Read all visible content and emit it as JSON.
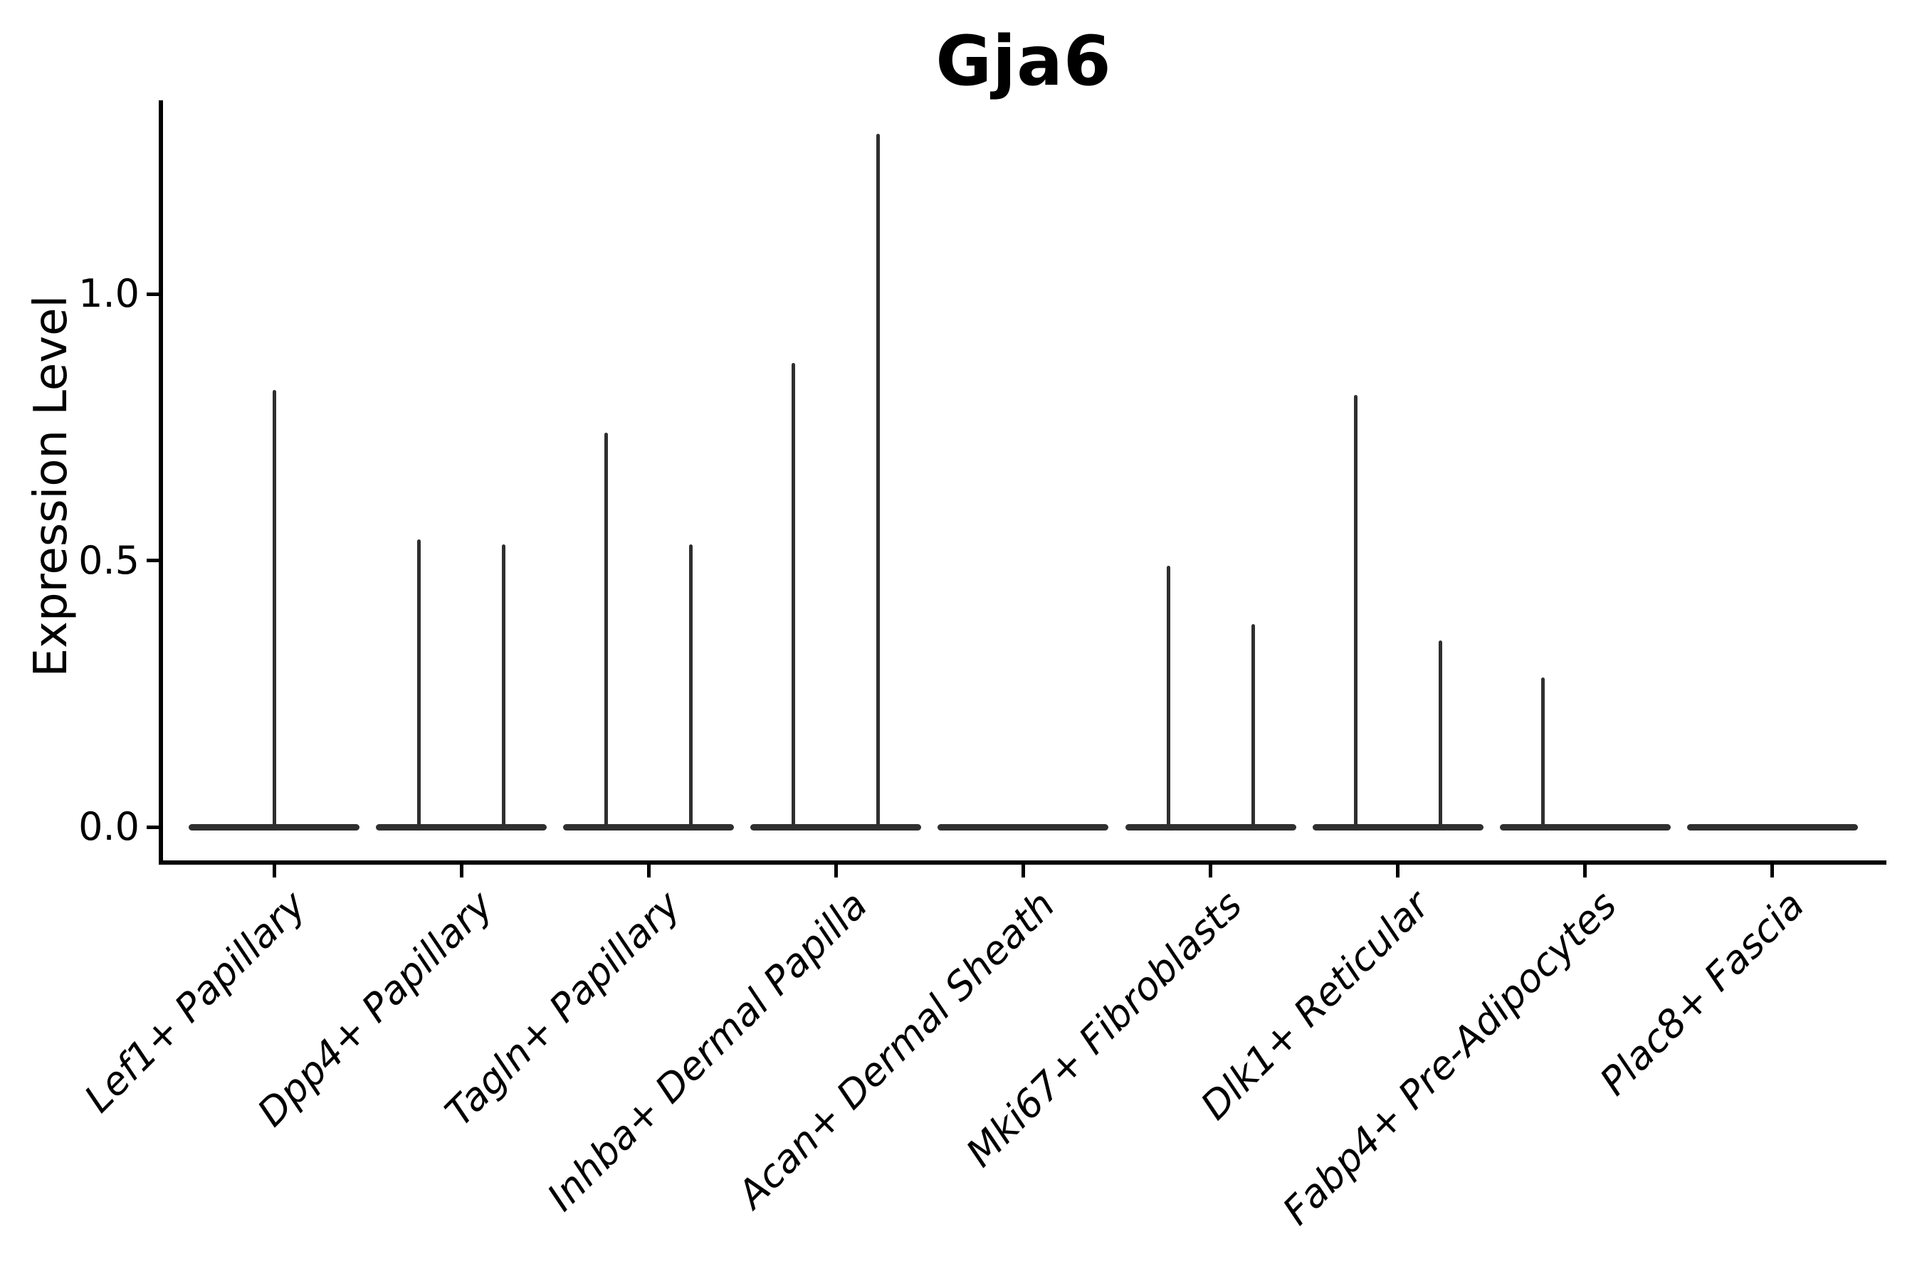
{
  "figure": {
    "background": "#ffffff"
  },
  "chart_data": {
    "type": "violin",
    "title": "Gja6",
    "xlabel": "",
    "ylabel": "Expression Level",
    "ylim": [
      0,
      1.36
    ],
    "grid": false,
    "legend": "none",
    "yticks": [
      {
        "label": "1.0",
        "value": 1.0
      },
      {
        "label": "0.5",
        "value": 0.5
      },
      {
        "label": "0.0",
        "value": 0.0
      }
    ],
    "categories": [
      "Lef1+ Papillary",
      "Dpp4+ Papillary",
      "Tagln+ Papillary",
      "Inhba+ Dermal Papilla",
      "Acan+ Dermal Sheath",
      "Mki67+ Fibroblasts",
      "Dlk1+ Reticular",
      "Fabp4+ Pre-Adipocytes",
      "Plac8+ Fascia"
    ],
    "baseline_value": 0.0,
    "violins": [
      {
        "category": "Lef1+ Papillary",
        "tails": [
          {
            "position": "center",
            "max": 0.82
          }
        ]
      },
      {
        "category": "Dpp4+ Papillary",
        "tails": [
          {
            "position": "left",
            "max": 0.54
          },
          {
            "position": "right",
            "max": 0.53
          }
        ]
      },
      {
        "category": "Tagln+ Papillary",
        "tails": [
          {
            "position": "left",
            "max": 0.74
          },
          {
            "position": "right",
            "max": 0.53
          }
        ]
      },
      {
        "category": "Inhba+ Dermal Papilla",
        "tails": [
          {
            "position": "left",
            "max": 0.87
          },
          {
            "position": "right",
            "max": 1.3
          }
        ]
      },
      {
        "category": "Acan+ Dermal Sheath",
        "tails": []
      },
      {
        "category": "Mki67+ Fibroblasts",
        "tails": [
          {
            "position": "left",
            "max": 0.49
          },
          {
            "position": "right",
            "max": 0.38
          }
        ]
      },
      {
        "category": "Dlk1+ Reticular",
        "tails": [
          {
            "position": "left",
            "max": 0.81
          },
          {
            "position": "right",
            "max": 0.35
          }
        ]
      },
      {
        "category": "Fabp4+ Pre-Adipocytes",
        "tails": [
          {
            "position": "left",
            "max": 0.28
          }
        ]
      },
      {
        "category": "Plac8+ Fascia",
        "tails": []
      }
    ],
    "colors": {
      "violin_stroke": "#2f2f2f",
      "axis": "#000000",
      "text": "#000000",
      "background": "#ffffff"
    }
  }
}
